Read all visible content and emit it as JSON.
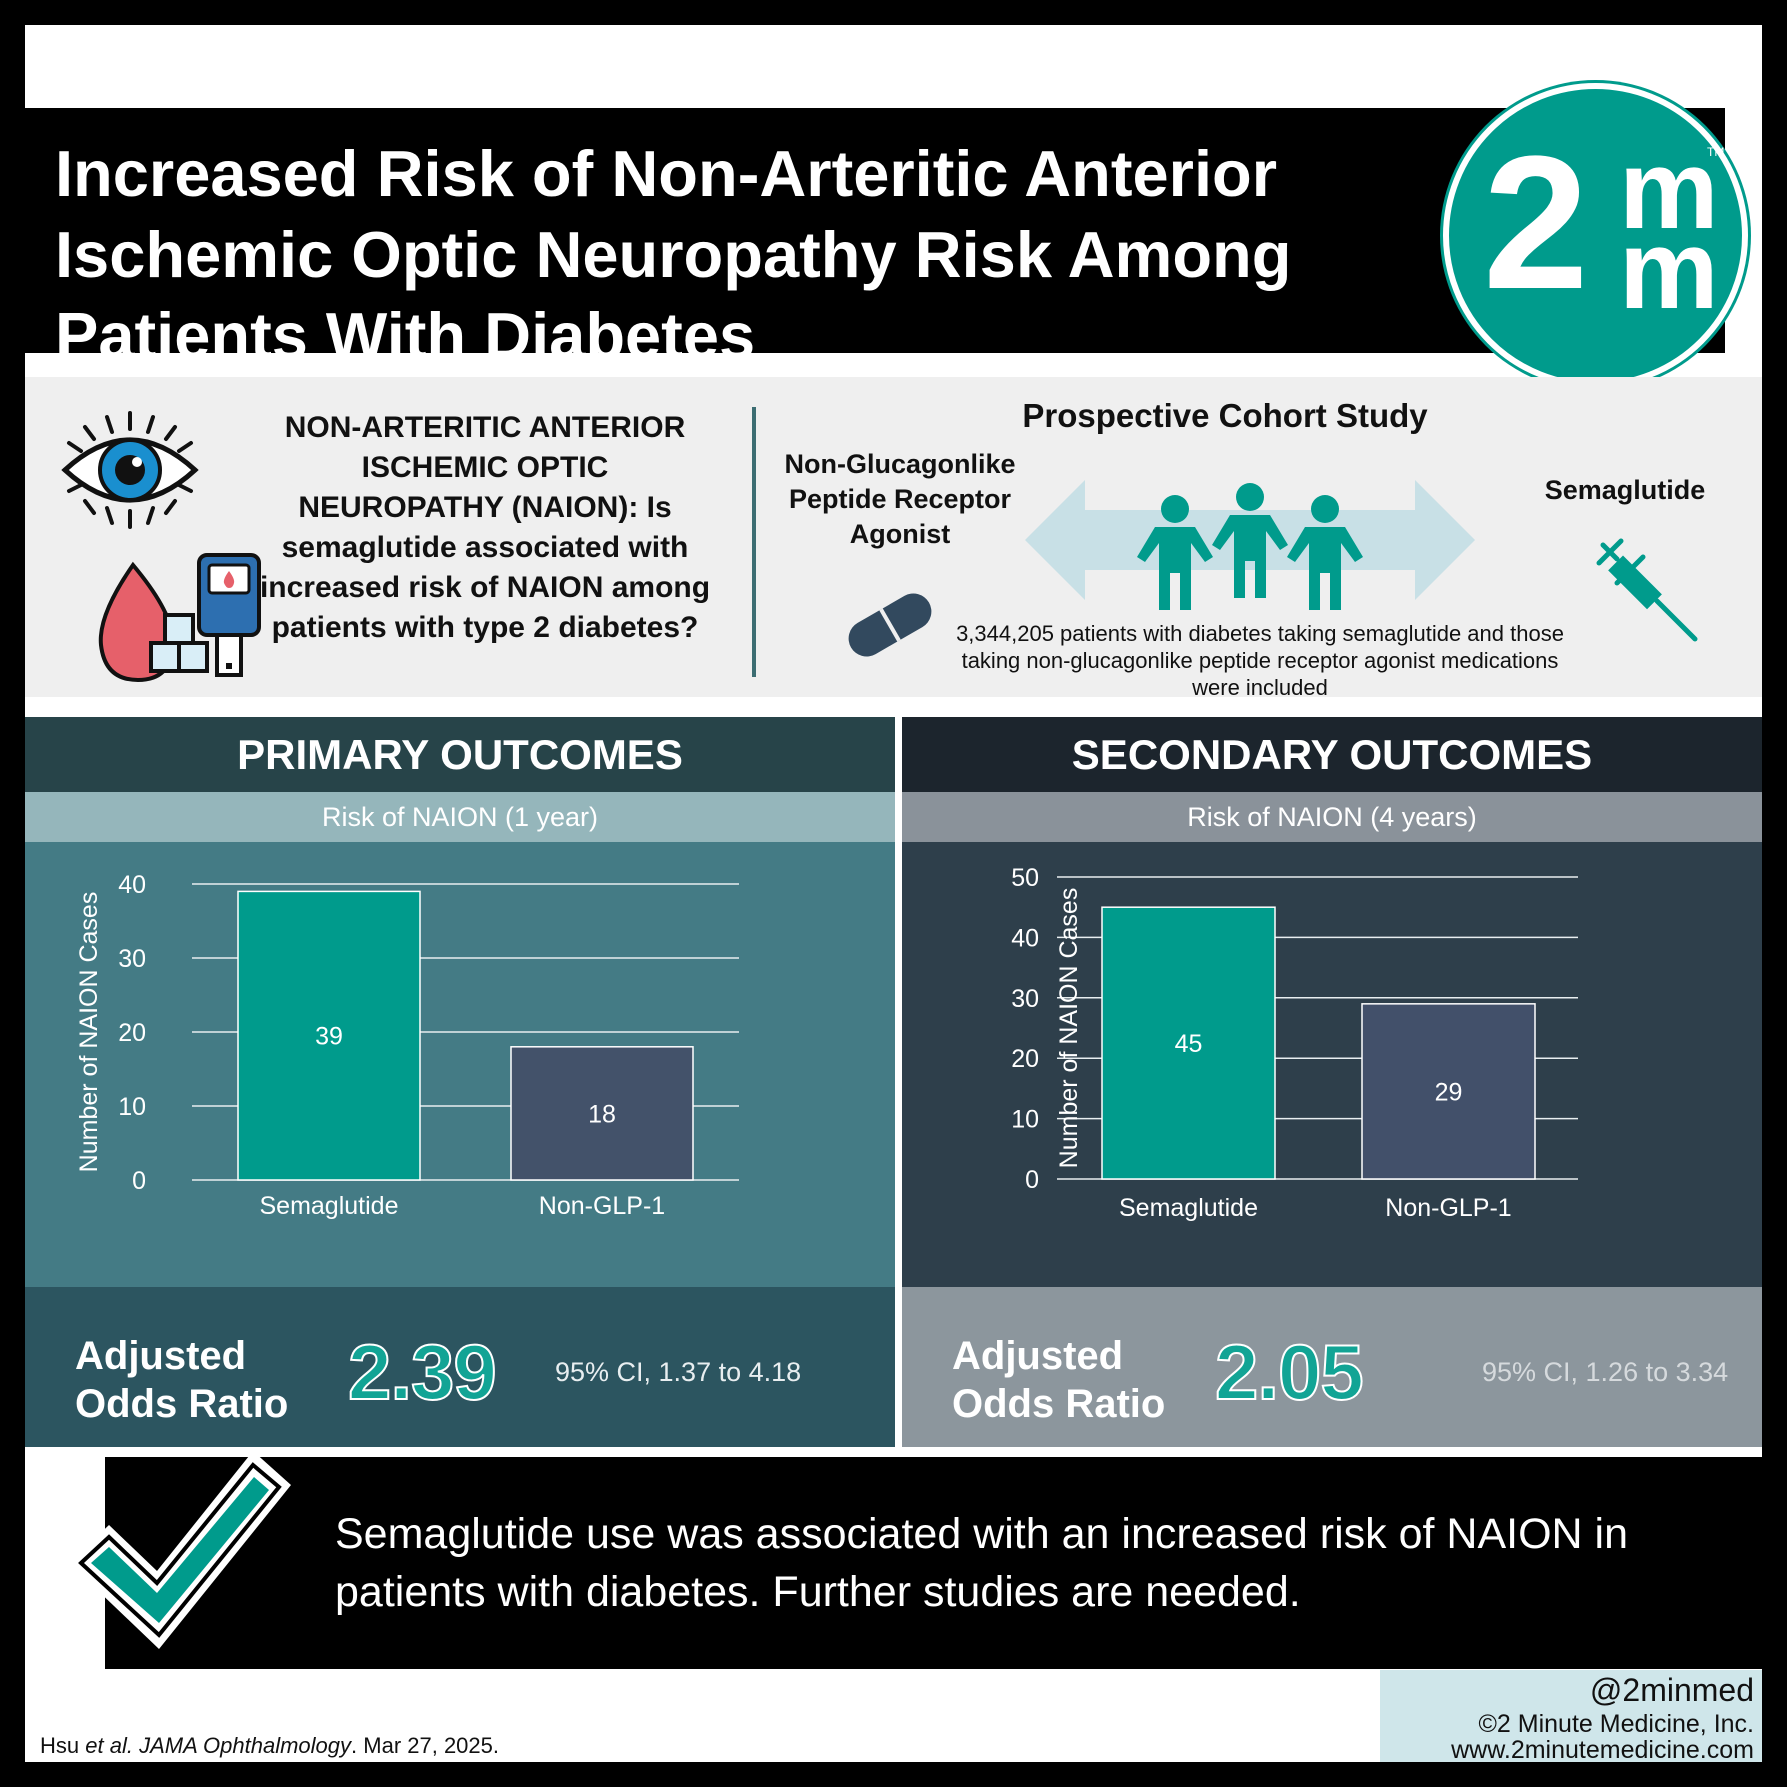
{
  "header": {
    "title": "Increased Risk of Non-Arteritic Anterior Ischemic Optic Neuropathy Risk Among Patients With Diabetes",
    "logo_number": "2",
    "logo_letter_top": "m",
    "logo_letter_bottom": "m",
    "logo_tm": "TM"
  },
  "intro": {
    "question": "NON-ARTERITIC ANTERIOR ISCHEMIC OPTIC NEUROPATHY (NAION): Is semaglutide associated with increased risk of NAION among patients with type 2 diabetes?",
    "icons": [
      "eye-icon",
      "glucose-meter-icon",
      "blood-drop-icon",
      "sugar-cubes-icon"
    ]
  },
  "study": {
    "title": "Prospective Cohort Study",
    "arm_left": "Non-Glucagonlike Peptide Receptor Agonist",
    "arm_right": "Semaglutide",
    "description": "3,344,205 patients with diabetes taking semaglutide and those taking non-glucagonlike peptide receptor agonist medications were included",
    "icons": [
      "pill-icon",
      "people-icon",
      "double-arrow-icon",
      "syringe-icon"
    ]
  },
  "primary": {
    "heading": "PRIMARY OUTCOMES",
    "subheading": "Risk of NAION (1 year)",
    "or_label": "Adjusted Odds Ratio",
    "or_value": "2.39",
    "or_ci": "95% CI, 1.37 to 4.18"
  },
  "secondary": {
    "heading": "SECONDARY OUTCOMES",
    "subheading": "Risk of NAION (4 years)",
    "or_label": "Adjusted Odds Ratio",
    "or_value": "2.05",
    "or_ci": "95% CI, 1.26 to 3.34"
  },
  "chart_data": [
    {
      "type": "bar",
      "categories": [
        "Semaglutide",
        "Non-GLP-1"
      ],
      "values": [
        39,
        18
      ],
      "ylabel": "Number of NAION Cases",
      "ylim": [
        0,
        40
      ],
      "yticks": [
        0,
        10,
        20,
        30,
        40
      ],
      "grid": true,
      "data_labels": true,
      "colors": [
        "#009b8c",
        "#43526a"
      ]
    },
    {
      "type": "bar",
      "categories": [
        "Semaglutide",
        "Non-GLP-1"
      ],
      "values": [
        45,
        29
      ],
      "ylabel": "Number of NAION Cases",
      "ylim": [
        0,
        50
      ],
      "yticks": [
        0,
        10,
        20,
        30,
        40,
        50
      ],
      "grid": true,
      "data_labels": true,
      "colors": [
        "#009b8c",
        "#42506a"
      ]
    }
  ],
  "conclusion": {
    "text": "Semaglutide use was associated with an increased risk of NAION in patients with diabetes. Further studies are needed.",
    "icon": "checkmark-icon"
  },
  "footer": {
    "handle": "@2minmed",
    "copyright": "©2 Minute Medicine, Inc.",
    "website": "www.2minutemedicine.com",
    "citation_authors": "Hsu",
    "citation_etal": "et al.",
    "citation_journal": "JAMA Ophthalmology",
    "citation_date": ". Mar 27, 2025."
  },
  "colors": {
    "teal": "#009b8c",
    "slate": "#43526a",
    "primary_panel": "#447b85",
    "secondary_panel": "#2e3f4b"
  }
}
